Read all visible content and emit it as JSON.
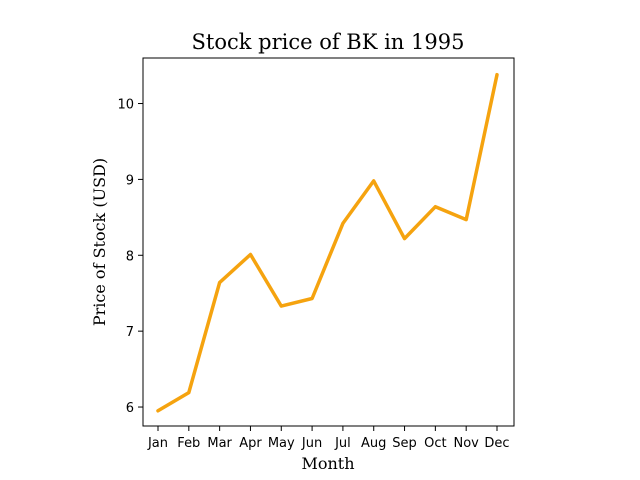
{
  "chart_data": {
    "type": "line",
    "title": "Stock price of BK in 1995",
    "xlabel": "Month",
    "ylabel": "Price of Stock (USD)",
    "categories": [
      "Jan",
      "Feb",
      "Mar",
      "Apr",
      "May",
      "Jun",
      "Jul",
      "Aug",
      "Sep",
      "Oct",
      "Nov",
      "Dec"
    ],
    "series": [
      {
        "values": [
          5.95,
          6.19,
          7.64,
          8.01,
          7.33,
          7.43,
          8.42,
          8.98,
          8.22,
          8.64,
          8.47,
          10.38
        ],
        "color": "#f5a30f"
      }
    ],
    "yticks": [
      6,
      7,
      8,
      9,
      10
    ],
    "ylim": [
      5.75,
      10.6
    ],
    "grid": false,
    "legend": "none"
  }
}
